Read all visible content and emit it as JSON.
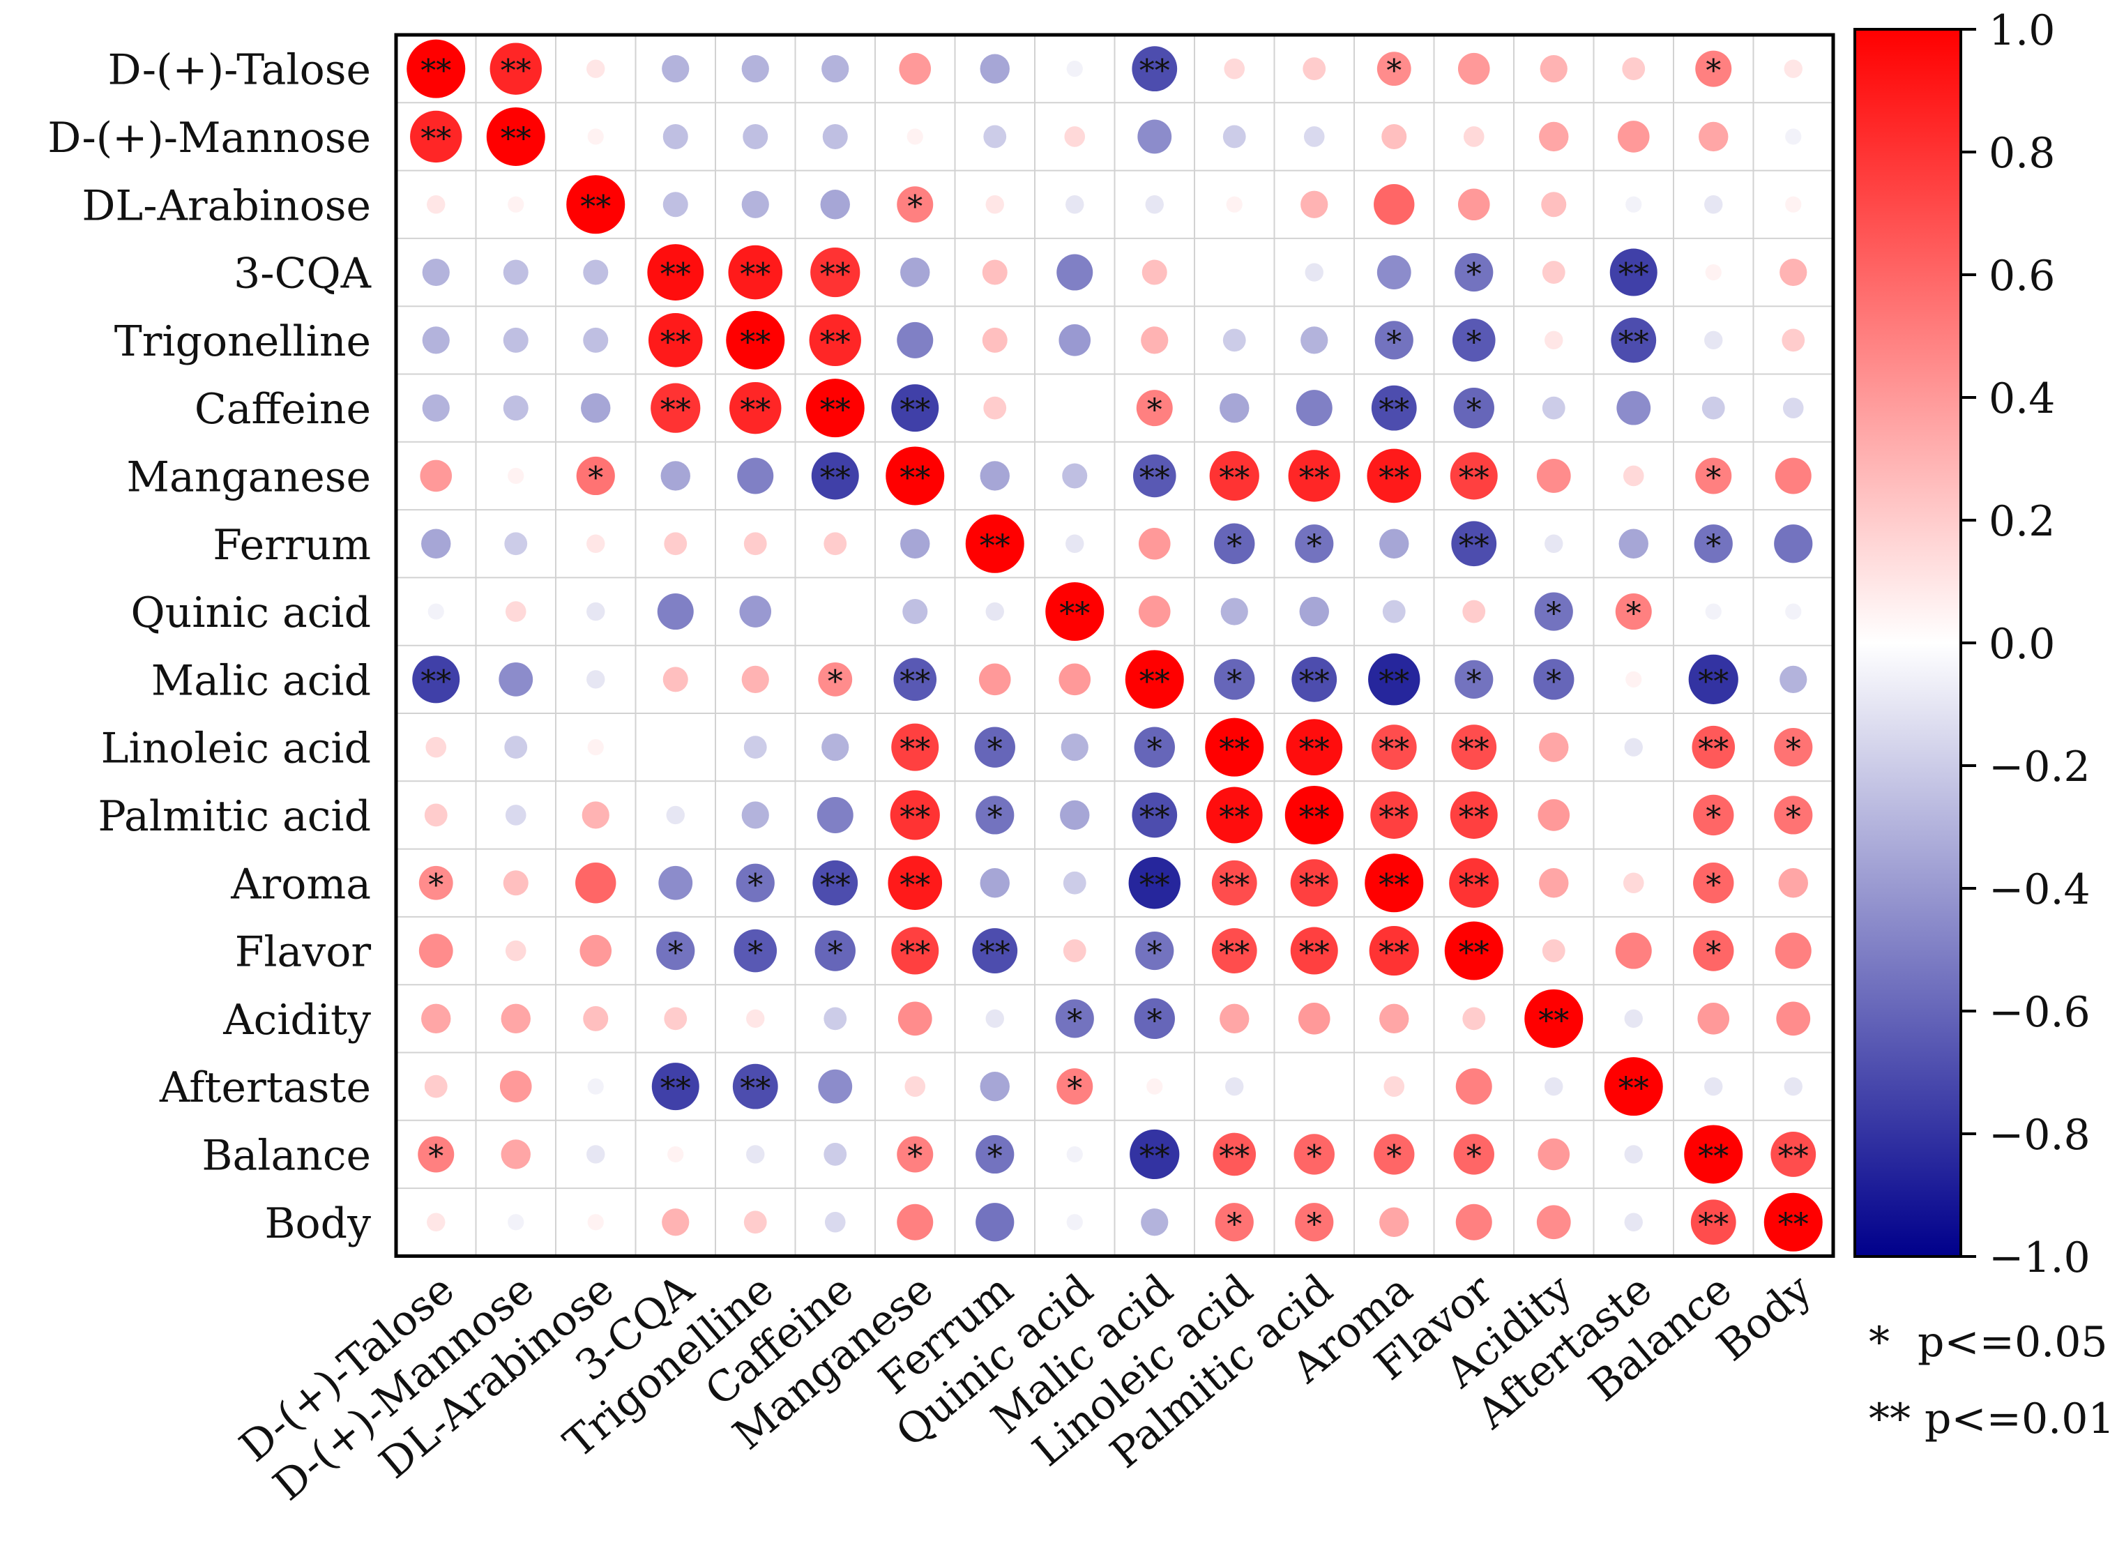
{
  "chart_data": {
    "type": "heatmap",
    "subtype": "correlation-circle-matrix",
    "variables": [
      "D-(+)-Talose",
      "D-(+)-Mannose",
      "DL-Arabinose",
      "3-CQA",
      "Trigonelline",
      "Caffeine",
      "Manganese",
      "Ferrum",
      "Quinic acid",
      "Malic acid",
      "Linoleic acid",
      "Palmitic acid",
      "Aroma",
      "Flavor",
      "Acidity",
      "Aftertaste",
      "Balance",
      "Body"
    ],
    "values": [
      [
        1.0,
        0.85,
        0.1,
        -0.3,
        -0.3,
        -0.3,
        0.4,
        -0.35,
        -0.05,
        -0.7,
        0.15,
        0.2,
        0.45,
        0.4,
        0.3,
        0.2,
        0.5,
        0.1
      ],
      [
        0.85,
        1.0,
        0.05,
        -0.25,
        -0.25,
        -0.25,
        0.05,
        -0.2,
        0.15,
        -0.45,
        -0.2,
        -0.15,
        0.25,
        0.15,
        0.35,
        0.4,
        0.35,
        -0.05
      ],
      [
        0.1,
        0.05,
        1.0,
        -0.25,
        -0.3,
        -0.35,
        0.5,
        0.1,
        -0.1,
        -0.1,
        0.05,
        0.3,
        0.6,
        0.4,
        0.25,
        -0.05,
        -0.1,
        0.05
      ],
      [
        -0.3,
        -0.25,
        -0.25,
        0.95,
        0.9,
        0.8,
        -0.35,
        0.25,
        -0.5,
        0.25,
        0,
        -0.1,
        -0.45,
        -0.55,
        0.2,
        -0.75,
        0.05,
        0.3
      ],
      [
        -0.3,
        -0.25,
        -0.25,
        0.9,
        1.0,
        0.85,
        -0.5,
        0.25,
        -0.4,
        0.3,
        -0.2,
        -0.3,
        -0.55,
        -0.65,
        0.1,
        -0.7,
        -0.1,
        0.2
      ],
      [
        -0.3,
        -0.25,
        -0.35,
        0.8,
        0.85,
        1.0,
        -0.75,
        0.2,
        0,
        0.5,
        -0.35,
        -0.5,
        -0.7,
        -0.6,
        -0.2,
        -0.45,
        -0.2,
        -0.15
      ],
      [
        0.4,
        0.05,
        0.55,
        -0.35,
        -0.5,
        -0.75,
        1.0,
        -0.35,
        -0.25,
        -0.65,
        0.8,
        0.85,
        0.9,
        0.75,
        0.45,
        0.15,
        0.5,
        0.5
      ],
      [
        -0.35,
        -0.2,
        0.1,
        0.2,
        0.2,
        0.2,
        -0.35,
        1.0,
        -0.1,
        0.4,
        -0.6,
        -0.55,
        -0.35,
        -0.7,
        -0.1,
        -0.35,
        -0.55,
        -0.55
      ],
      [
        -0.05,
        0.15,
        -0.1,
        -0.5,
        -0.4,
        0,
        -0.25,
        -0.1,
        1.0,
        0.4,
        -0.3,
        -0.35,
        -0.2,
        0.2,
        -0.55,
        0.5,
        -0.05,
        -0.05
      ],
      [
        -0.75,
        -0.45,
        -0.1,
        0.25,
        0.3,
        0.45,
        -0.65,
        0.4,
        0.4,
        1.0,
        -0.6,
        -0.7,
        -0.85,
        -0.55,
        -0.6,
        0.05,
        -0.8,
        -0.3
      ],
      [
        0.15,
        -0.2,
        0.05,
        0,
        -0.2,
        -0.3,
        0.75,
        -0.6,
        -0.3,
        -0.6,
        1.0,
        0.95,
        0.7,
        0.7,
        0.35,
        -0.1,
        0.65,
        0.55
      ],
      [
        0.2,
        -0.15,
        0.3,
        -0.1,
        -0.3,
        -0.5,
        0.8,
        -0.55,
        -0.35,
        -0.7,
        0.95,
        1.0,
        0.75,
        0.75,
        0.4,
        0,
        0.6,
        0.55
      ],
      [
        0.45,
        0.25,
        0.6,
        -0.45,
        -0.55,
        -0.7,
        0.9,
        -0.35,
        -0.2,
        -0.85,
        0.7,
        0.75,
        1.0,
        0.8,
        0.35,
        0.15,
        0.6,
        0.35
      ],
      [
        0.45,
        0.15,
        0.4,
        -0.55,
        -0.65,
        -0.6,
        0.75,
        -0.7,
        0.2,
        -0.55,
        0.7,
        0.75,
        0.8,
        1.0,
        0.2,
        0.5,
        0.6,
        0.5
      ],
      [
        0.35,
        0.35,
        0.25,
        0.2,
        0.1,
        -0.2,
        0.45,
        -0.1,
        -0.55,
        -0.6,
        0.35,
        0.4,
        0.35,
        0.2,
        1.0,
        -0.1,
        0.4,
        0.45
      ],
      [
        0.2,
        0.4,
        -0.05,
        -0.75,
        -0.7,
        -0.45,
        0.15,
        -0.35,
        0.5,
        0.05,
        -0.1,
        0,
        0.15,
        0.5,
        -0.1,
        1.0,
        -0.1,
        -0.1
      ],
      [
        0.5,
        0.35,
        -0.1,
        0.05,
        -0.1,
        -0.2,
        0.5,
        -0.55,
        -0.05,
        -0.8,
        0.65,
        0.6,
        0.6,
        0.6,
        0.4,
        -0.1,
        1.0,
        0.7
      ],
      [
        0.1,
        -0.05,
        0.05,
        0.3,
        0.2,
        -0.15,
        0.5,
        -0.55,
        -0.05,
        -0.3,
        0.55,
        0.55,
        0.35,
        0.5,
        0.45,
        -0.1,
        0.7,
        1.0
      ]
    ],
    "significance": [
      [
        "**",
        "**",
        "",
        "",
        "",
        "",
        "",
        "",
        "",
        "**",
        "",
        "",
        "*",
        "",
        "",
        "",
        "*",
        ""
      ],
      [
        "**",
        "**",
        "",
        "",
        "",
        "",
        "",
        "",
        "",
        "",
        "",
        "",
        "",
        "",
        "",
        "",
        "",
        ""
      ],
      [
        "",
        "",
        "**",
        "",
        "",
        "",
        "*",
        "",
        "",
        "",
        "",
        "",
        "",
        "",
        "",
        "",
        "",
        ""
      ],
      [
        "",
        "",
        "",
        "**",
        "**",
        "**",
        "",
        "",
        "",
        "",
        "",
        "",
        "",
        "*",
        "",
        "**",
        "",
        ""
      ],
      [
        "",
        "",
        "",
        "**",
        "**",
        "**",
        "",
        "",
        "",
        "",
        "",
        "",
        "*",
        "*",
        "",
        "**",
        "",
        ""
      ],
      [
        "",
        "",
        "",
        "**",
        "**",
        "**",
        "**",
        "",
        "",
        "*",
        "",
        "",
        "**",
        "*",
        "",
        "",
        "",
        ""
      ],
      [
        "",
        "",
        "*",
        "",
        "",
        "**",
        "**",
        "",
        "",
        "**",
        "**",
        "**",
        "**",
        "**",
        "",
        "",
        "*",
        ""
      ],
      [
        "",
        "",
        "",
        "",
        "",
        "",
        "",
        "**",
        "",
        "",
        "*",
        "*",
        "",
        "**",
        "",
        "",
        "*",
        ""
      ],
      [
        "",
        "",
        "",
        "",
        "",
        "",
        "",
        "",
        "**",
        "",
        "",
        "",
        "",
        "",
        "*",
        "*",
        "",
        ""
      ],
      [
        "**",
        "",
        "",
        "",
        "",
        "*",
        "**",
        "",
        "",
        "**",
        "*",
        "**",
        "**",
        "*",
        "*",
        "",
        "**",
        ""
      ],
      [
        "",
        "",
        "",
        "",
        "",
        "",
        "**",
        "*",
        "",
        "*",
        "**",
        "**",
        "**",
        "**",
        "",
        "",
        "**",
        "*"
      ],
      [
        "",
        "",
        "",
        "",
        "",
        "",
        "**",
        "*",
        "",
        "**",
        "**",
        "**",
        "**",
        "**",
        "",
        "",
        "*",
        "*"
      ],
      [
        "*",
        "",
        "",
        "",
        "*",
        "**",
        "**",
        "",
        "",
        "**",
        "**",
        "**",
        "**",
        "**",
        "",
        "",
        "*",
        ""
      ],
      [
        "",
        "",
        "",
        "*",
        "*",
        "*",
        "**",
        "**",
        "",
        "*",
        "**",
        "**",
        "**",
        "**",
        "",
        "",
        "*",
        ""
      ],
      [
        "",
        "",
        "",
        "",
        "",
        "",
        "",
        "",
        "*",
        "*",
        "",
        "",
        "",
        "",
        "**",
        "",
        "",
        ""
      ],
      [
        "",
        "",
        "",
        "**",
        "**",
        "",
        "",
        "",
        "*",
        "",
        "",
        "",
        "",
        "",
        "",
        "**",
        "",
        ""
      ],
      [
        "*",
        "",
        "",
        "",
        "",
        "",
        "*",
        "*",
        "",
        "**",
        "**",
        "*",
        "*",
        "*",
        "",
        "",
        "**",
        "**"
      ],
      [
        "",
        "",
        "",
        "",
        "",
        "",
        "",
        "",
        "",
        "",
        "*",
        "*",
        "",
        "",
        "",
        "",
        "**",
        "**"
      ]
    ],
    "colorbar": {
      "range": [
        -1.0,
        1.0
      ],
      "tick_labels": [
        "1.0",
        "0.8",
        "0.6",
        "0.4",
        "0.2",
        "0.0",
        "−0.2",
        "−0.4",
        "−0.6",
        "−0.8",
        "−1.0"
      ],
      "colors": {
        "negative": "#00008b",
        "mid": "#ffffff",
        "positive": "#ff0000"
      }
    },
    "legend": {
      "single": {
        "symbol": "*",
        "text": "p<=0.05"
      },
      "double": {
        "symbol": "**",
        "text": "p<=0.01"
      }
    }
  }
}
